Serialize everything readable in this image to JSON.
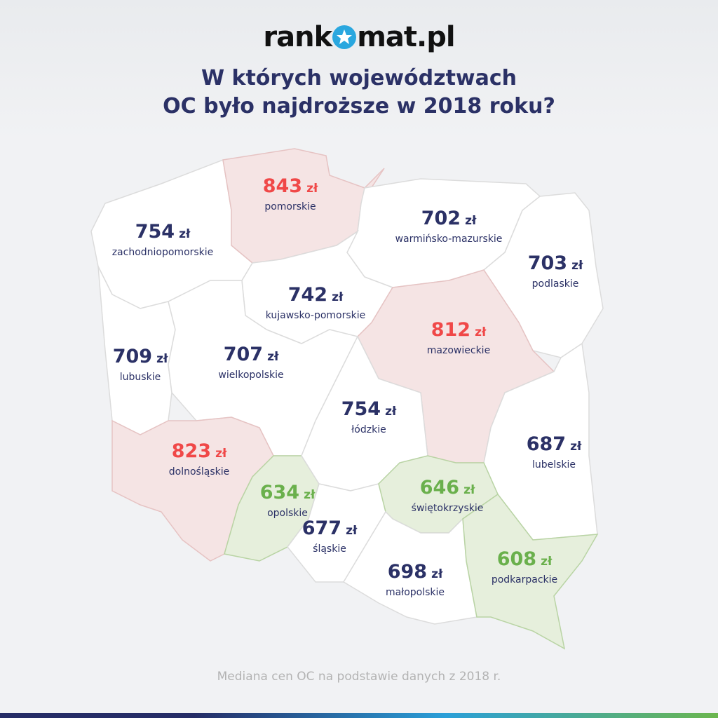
{
  "logo": {
    "text_before": "rank",
    "text_after": "mat.pl"
  },
  "title": {
    "line1": "W których województwach",
    "line2": "OC było najdroższe w 2018 roku?"
  },
  "currency": "zł",
  "colors": {
    "title": "#2b3166",
    "high": "#f04848",
    "low": "#6ab04c",
    "normal": "#2b3166",
    "high_fill": "#f5e4e4",
    "low_fill": "#e6efdc",
    "normal_fill": "#ffffff"
  },
  "regions": [
    {
      "name": "zachodniopomorskie",
      "value": "754",
      "category": "normal"
    },
    {
      "name": "pomorskie",
      "value": "843",
      "category": "high"
    },
    {
      "name": "warmińsko-mazurskie",
      "value": "702",
      "category": "normal"
    },
    {
      "name": "podlaskie",
      "value": "703",
      "category": "normal"
    },
    {
      "name": "kujawsko-pomorskie",
      "value": "742",
      "category": "normal"
    },
    {
      "name": "mazowieckie",
      "value": "812",
      "category": "high"
    },
    {
      "name": "lubelskie",
      "value": "687",
      "category": "normal"
    },
    {
      "name": "lubuskie",
      "value": "709",
      "category": "normal"
    },
    {
      "name": "wielkopolskie",
      "value": "707",
      "category": "normal"
    },
    {
      "name": "dolnośląskie",
      "value": "823",
      "category": "high"
    },
    {
      "name": "opolskie",
      "value": "634",
      "category": "low"
    },
    {
      "name": "łódzkie",
      "value": "754",
      "category": "normal"
    },
    {
      "name": "śląskie",
      "value": "677",
      "category": "normal"
    },
    {
      "name": "świętokrzyskie",
      "value": "646",
      "category": "low"
    },
    {
      "name": "małopolskie",
      "value": "698",
      "category": "normal"
    },
    {
      "name": "podkarpackie",
      "value": "608",
      "category": "low"
    }
  ],
  "footer": "Mediana cen OC na podstawie danych z 2018 r."
}
